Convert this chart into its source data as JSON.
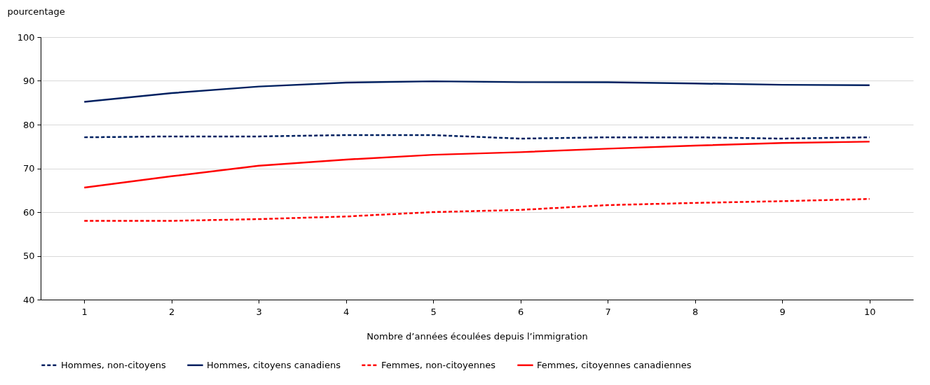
{
  "chart_data": {
    "type": "line",
    "xlabel": "Nombre d’années écoulées depuis l’immigration",
    "ylabel": "pourcentage",
    "categories": [
      "1",
      "2",
      "3",
      "4",
      "5",
      "6",
      "7",
      "8",
      "9",
      "10"
    ],
    "series": [
      {
        "name": "Hommes, non-citoyens",
        "color": "#002060",
        "line_style": "dashed",
        "values": [
          77.1,
          77.3,
          77.3,
          77.6,
          77.6,
          76.8,
          77.1,
          77.1,
          76.8,
          77.1
        ]
      },
      {
        "name": "Hommes, citoyens canadiens",
        "color": "#002060",
        "line_style": "solid",
        "values": [
          85.2,
          87.2,
          88.7,
          89.6,
          89.9,
          89.7,
          89.7,
          89.4,
          89.1,
          89.0
        ]
      },
      {
        "name": "Femmes, non-citoyennes",
        "color": "#ff0000",
        "line_style": "dashed",
        "values": [
          58.0,
          58.0,
          58.4,
          59.0,
          60.0,
          60.5,
          61.6,
          62.1,
          62.5,
          63.0
        ]
      },
      {
        "name": "Femmes, citoyennes canadiennes",
        "color": "#ff0000",
        "line_style": "solid",
        "values": [
          65.6,
          68.2,
          70.6,
          72.0,
          73.1,
          73.7,
          74.5,
          75.2,
          75.8,
          76.1
        ]
      }
    ],
    "ylim": [
      40,
      100
    ],
    "yticks": [
      40,
      50,
      60,
      70,
      80,
      90,
      100
    ],
    "grid": "y",
    "legend": "bottom",
    "marker": "none"
  }
}
